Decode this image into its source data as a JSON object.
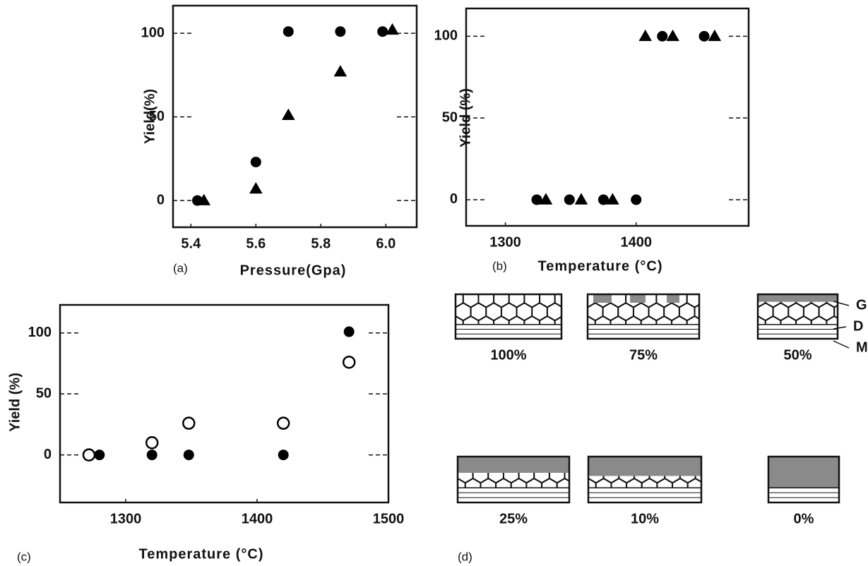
{
  "chart_data": [
    {
      "type": "scatter",
      "panel_label": "(a)",
      "x_label": "Pressure(Gpa)",
      "y_label": "Yield(%)",
      "xlim": [
        5.345,
        6.095
      ],
      "ylim": [
        -16,
        116.5
      ],
      "xticks": [
        5.4,
        5.6,
        5.8,
        {
          "value": 6,
          "label": "6.0"
        }
      ],
      "yticks": [
        0,
        50,
        100
      ],
      "series": [
        {
          "marker": "circle",
          "filled": true,
          "color": "#000000",
          "x": [
            5.42,
            5.6,
            5.7,
            5.86,
            5.99
          ],
          "values": [
            0,
            23,
            101,
            101,
            101
          ]
        },
        {
          "marker": "triangle",
          "filled": true,
          "color": "#000000",
          "x": [
            5.44,
            5.6,
            5.7,
            5.86,
            6.02
          ],
          "values": [
            0,
            7,
            51,
            77,
            102
          ]
        }
      ]
    },
    {
      "type": "scatter",
      "panel_label": "(b)",
      "x_label": "Temperature (°C)",
      "y_label": "Yield (%)",
      "xlim": [
        1270,
        1486
      ],
      "ylim": [
        -16,
        117
      ],
      "xticks": [
        1300,
        1400
      ],
      "yticks": [
        0,
        50,
        100
      ],
      "series": [
        {
          "marker": "circle",
          "filled": true,
          "color": "#000000",
          "x": [
            1324,
            1349,
            1375,
            1400,
            1420,
            1452
          ],
          "values": [
            0,
            0,
            0,
            0,
            100,
            100
          ]
        },
        {
          "marker": "triangle",
          "filled": true,
          "color": "#000000",
          "x": [
            1331,
            1358,
            1382,
            1407,
            1428,
            1460
          ],
          "values": [
            0,
            0,
            0,
            100,
            100,
            100
          ]
        }
      ]
    },
    {
      "type": "scatter",
      "panel_label": "(c)",
      "x_label": "Temperature (°C)",
      "y_label": "Yield (%)",
      "xlim": [
        1250,
        1500
      ],
      "ylim": [
        -39,
        123
      ],
      "xticks": [
        1300,
        1400,
        1500
      ],
      "yticks": [
        0,
        50,
        100
      ],
      "series": [
        {
          "marker": "circle",
          "filled": false,
          "color": "#000000",
          "x": [
            1272,
            1320,
            1348,
            1420,
            1470
          ],
          "values": [
            0,
            10,
            26,
            26,
            76
          ]
        },
        {
          "marker": "circle",
          "filled": true,
          "color": "#000000",
          "x": [
            1280,
            1320,
            1348,
            1420,
            1470
          ],
          "values": [
            0,
            0,
            0,
            0,
            101
          ]
        }
      ]
    }
  ],
  "diagram": {
    "panel_label": "(d)",
    "layer_labels": [
      "G",
      "D",
      "M"
    ],
    "panels": [
      "100%",
      "75%",
      "50%",
      "25%",
      "10%",
      "0%"
    ]
  }
}
